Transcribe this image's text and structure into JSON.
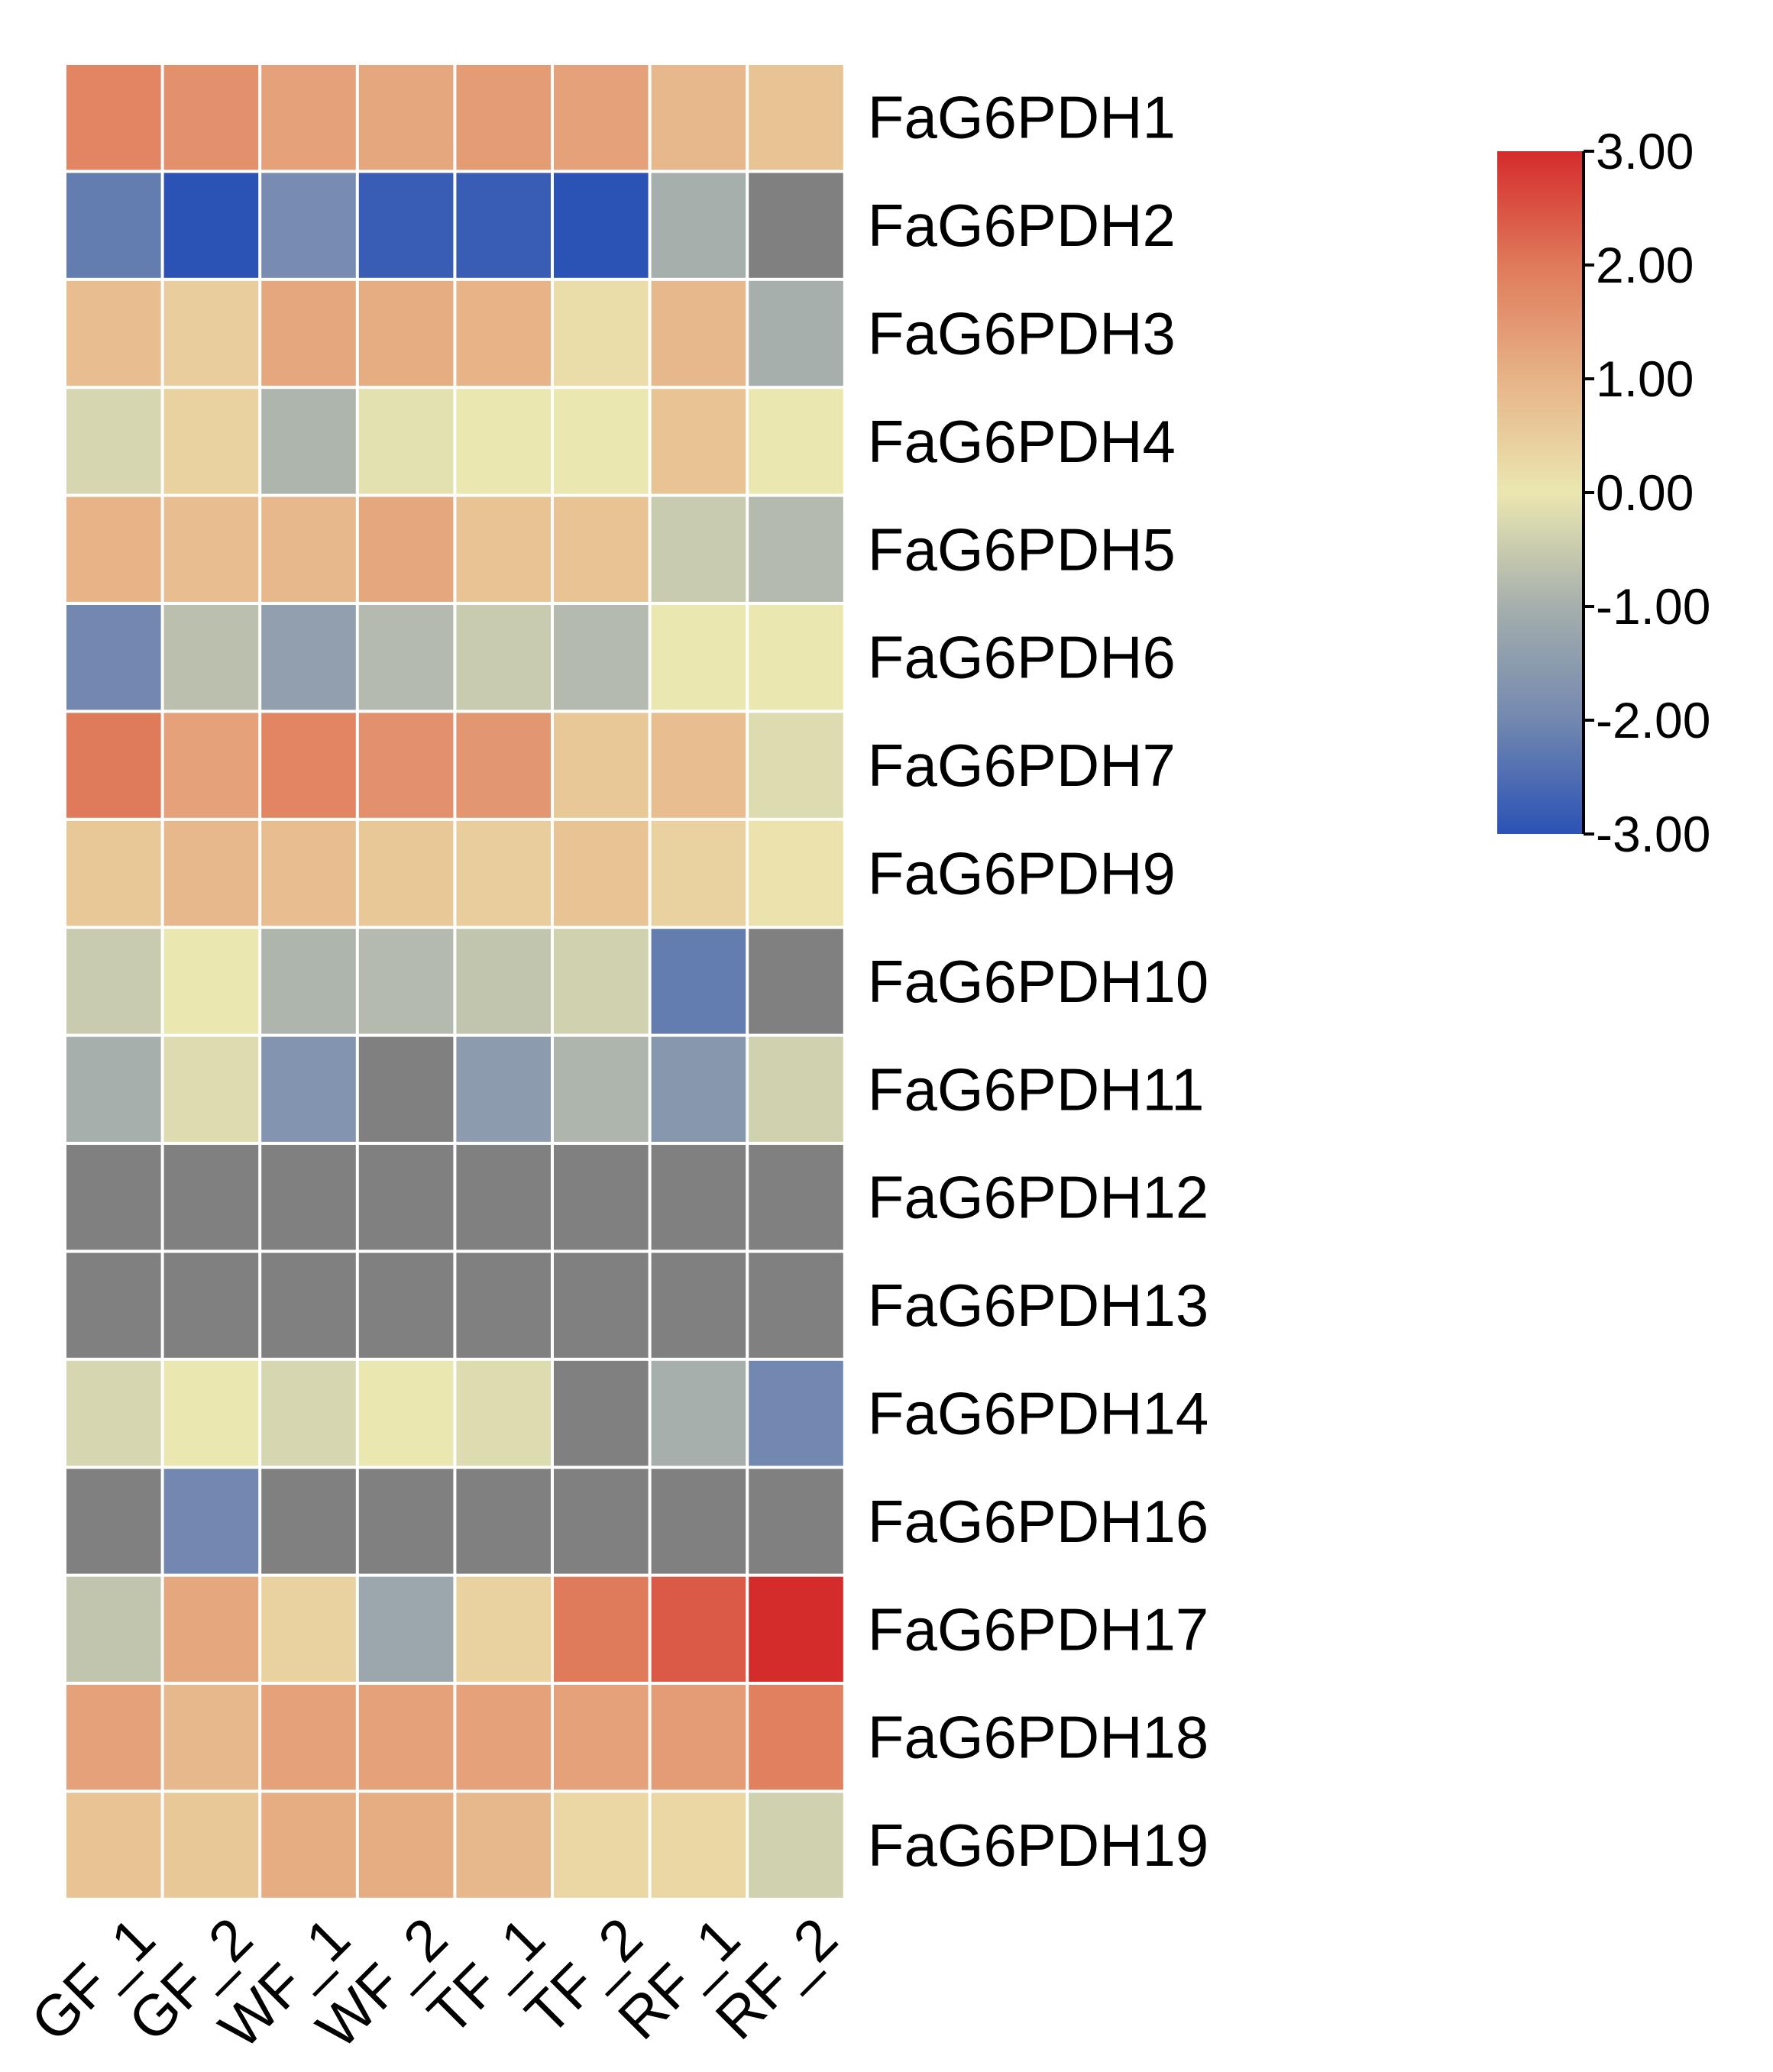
{
  "chart_data": {
    "type": "heatmap",
    "columns": [
      "GF_1",
      "GF_2",
      "WF_1",
      "WF_2",
      "TF_1",
      "TF_2",
      "RF_1",
      "RF_2"
    ],
    "rows": [
      "FaG6PDH1",
      "FaG6PDH2",
      "FaG6PDH3",
      "FaG6PDH4",
      "FaG6PDH5",
      "FaG6PDH6",
      "FaG6PDH7",
      "FaG6PDH9",
      "FaG6PDH10",
      "FaG6PDH11",
      "FaG6PDH12",
      "FaG6PDH13",
      "FaG6PDH14",
      "FaG6PDH16",
      "FaG6PDH17",
      "FaG6PDH18",
      "FaG6PDH19"
    ],
    "values": [
      [
        1.8,
        1.6,
        1.3,
        1.2,
        1.4,
        1.3,
        0.9,
        0.7
      ],
      [
        -2.2,
        -3.0,
        -1.9,
        -2.8,
        -2.8,
        -3.0,
        -1.0,
        null
      ],
      [
        0.8,
        0.5,
        1.2,
        1.1,
        1.0,
        0.2,
        0.9,
        -1.0
      ],
      [
        -0.3,
        0.4,
        -0.9,
        -0.1,
        0.0,
        0.0,
        0.7,
        0.0
      ],
      [
        1.0,
        0.8,
        0.9,
        1.2,
        0.7,
        0.7,
        -0.5,
        -0.8
      ],
      [
        -2.0,
        -0.7,
        -1.4,
        -0.8,
        -0.5,
        -0.8,
        0.0,
        0.0
      ],
      [
        2.0,
        1.3,
        1.8,
        1.6,
        1.5,
        0.6,
        0.8,
        -0.2
      ],
      [
        0.6,
        0.9,
        0.8,
        0.6,
        0.5,
        0.7,
        0.4,
        0.1
      ],
      [
        -0.5,
        0.0,
        -0.9,
        -0.8,
        -0.6,
        -0.4,
        -2.2,
        null
      ],
      [
        -1.0,
        -0.2,
        -1.7,
        null,
        -1.5,
        -0.9,
        -1.6,
        -0.4
      ],
      [
        null,
        null,
        null,
        null,
        null,
        null,
        null,
        null
      ],
      [
        null,
        null,
        null,
        null,
        null,
        null,
        null,
        null
      ],
      [
        -0.3,
        0.0,
        -0.3,
        0.0,
        -0.2,
        null,
        -1.0,
        -2.0
      ],
      [
        null,
        -2.0,
        null,
        null,
        null,
        null,
        null,
        null
      ],
      [
        -0.6,
        1.2,
        0.4,
        -1.2,
        0.4,
        2.0,
        2.4,
        3.0
      ],
      [
        1.3,
        0.9,
        1.3,
        1.3,
        1.3,
        1.3,
        1.4,
        1.9
      ],
      [
        0.7,
        0.6,
        1.1,
        1.1,
        0.9,
        0.3,
        0.3,
        -0.4
      ]
    ],
    "missing_color": "#808080",
    "colorbar": {
      "ticks": [
        3,
        2,
        1,
        0,
        -1,
        -2,
        -3
      ],
      "tick_labels": [
        "3.00",
        "2.00",
        "1.00",
        "0.00",
        "-1.00",
        "-2.00",
        "-3.00"
      ],
      "range": [
        -3,
        3
      ],
      "stops": [
        {
          "value": -3,
          "color": "#2b52b5"
        },
        {
          "value": -2,
          "color": "#7288b0"
        },
        {
          "value": -1,
          "color": "#a6afac"
        },
        {
          "value": 0,
          "color": "#ebe7b1"
        },
        {
          "value": 1,
          "color": "#e7b387"
        },
        {
          "value": 2,
          "color": "#df7a5a"
        },
        {
          "value": 3,
          "color": "#d42b2b"
        }
      ]
    }
  }
}
